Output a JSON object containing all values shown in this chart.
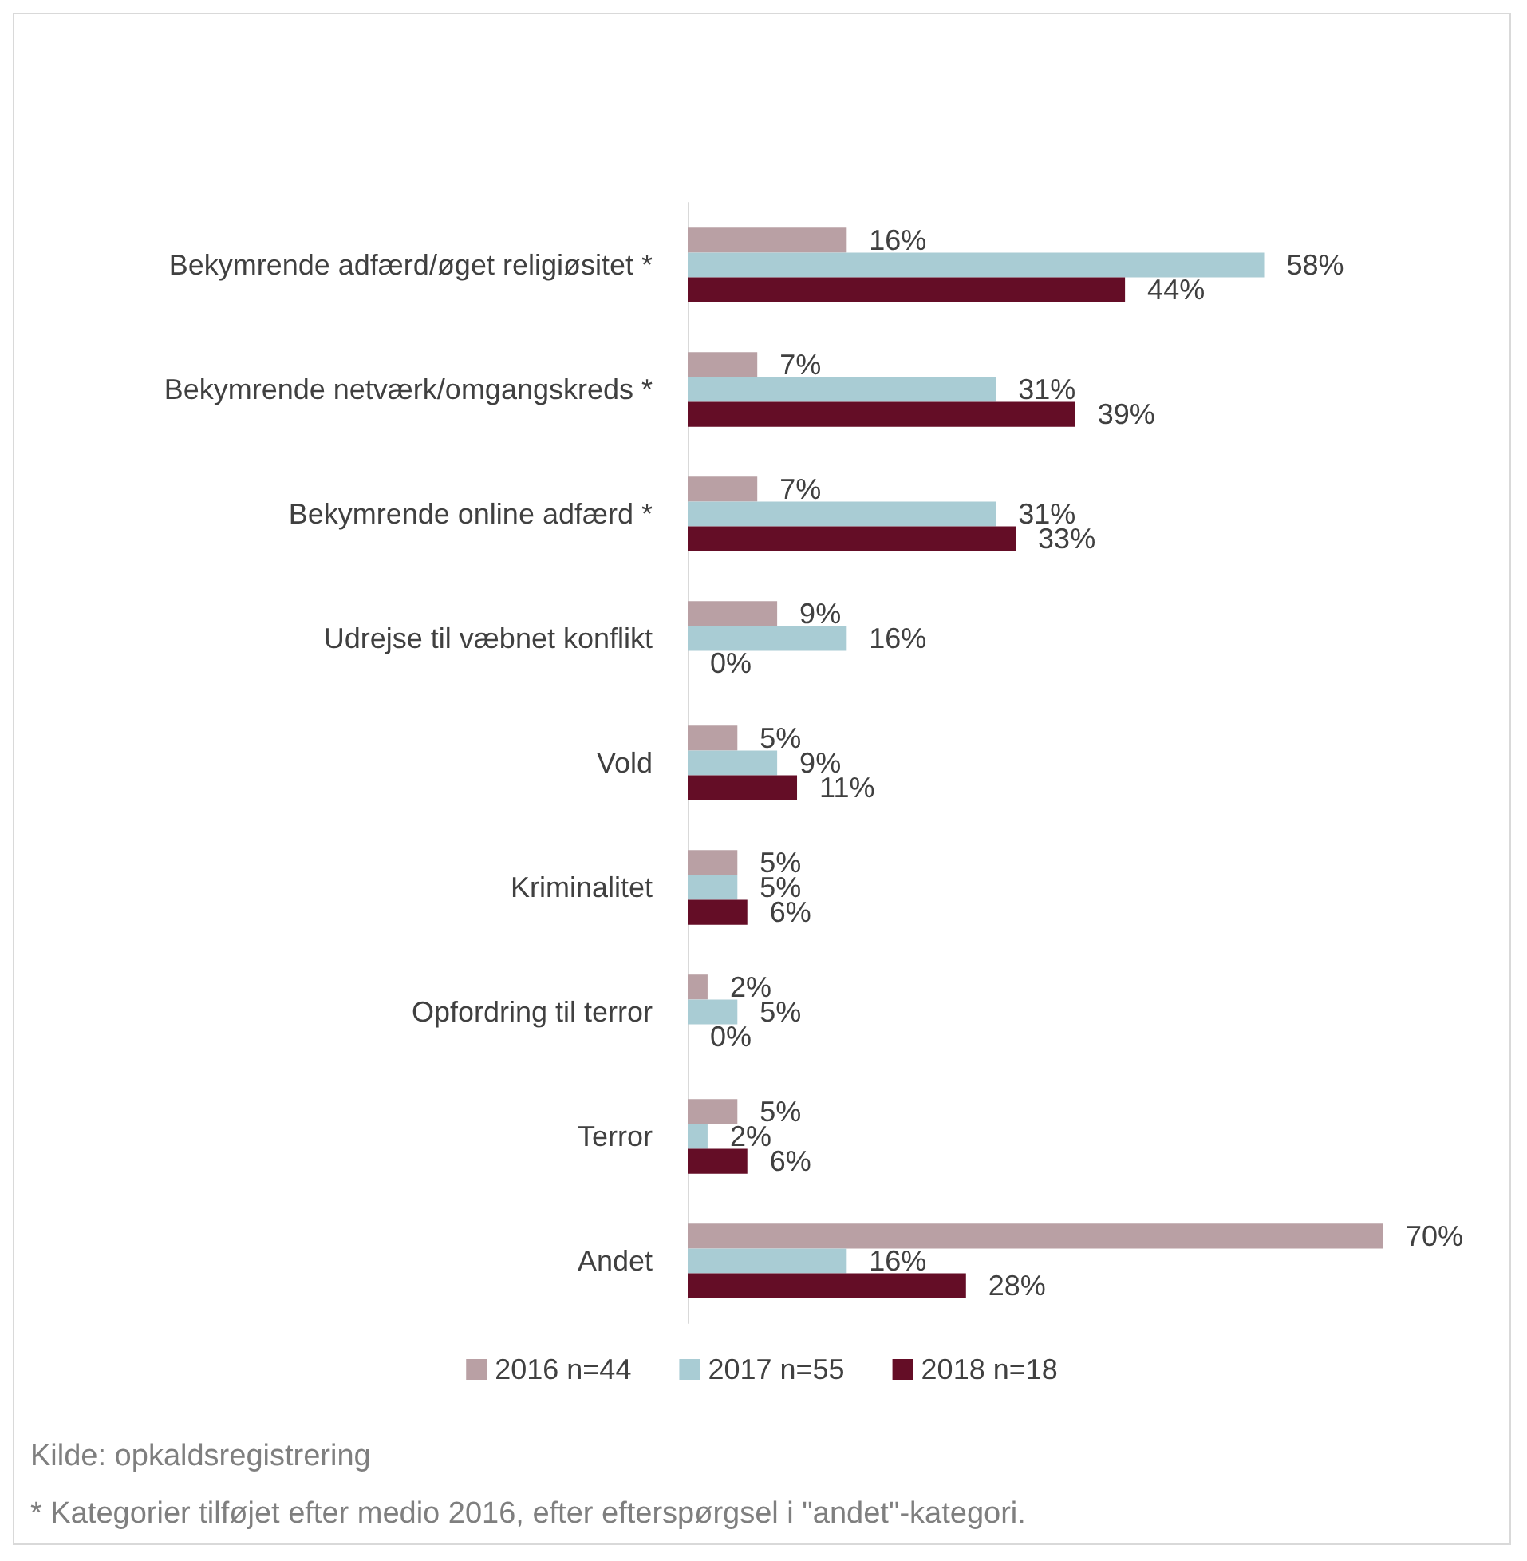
{
  "chart_data": {
    "type": "bar",
    "orientation": "horizontal",
    "categories": [
      "Bekymrende adfærd/øget religiøsitet *",
      "Bekymrende netværk/omgangskreds *",
      "Bekymrende online adfærd *",
      "Udrejse til væbnet konflikt",
      "Vold",
      "Kriminalitet",
      "Opfordring til terror",
      "Terror",
      "Andet"
    ],
    "series": [
      {
        "name": "2016 n=44",
        "color": "#b9a0a4",
        "values": [
          16,
          7,
          7,
          9,
          5,
          5,
          2,
          5,
          70
        ],
        "value_labels": [
          "16%",
          "7%",
          "7%",
          "9%",
          "5%",
          "5%",
          "2%",
          "5%",
          "70%"
        ]
      },
      {
        "name": "2017 n=55",
        "color": "#a9ccd4",
        "values": [
          58,
          31,
          31,
          16,
          9,
          5,
          5,
          2,
          16
        ],
        "value_labels": [
          "58%",
          "31%",
          "31%",
          "16%",
          "9%",
          "5%",
          "5%",
          "2%",
          "16%"
        ]
      },
      {
        "name": "2018 n=18",
        "color": "#640d26",
        "values": [
          44,
          39,
          33,
          0,
          11,
          6,
          0,
          6,
          28
        ],
        "value_labels": [
          "44%",
          "39%",
          "33%",
          "0%",
          "11%",
          "6%",
          "0%",
          "6%",
          "28%"
        ]
      }
    ],
    "legend": "bottom",
    "annotations": [
      "Kilde: opkaldsregistrering",
      "* Kategorier tilføjet efter medio 2016, efter efterspørgsel i \"andet\"-kategori."
    ]
  }
}
